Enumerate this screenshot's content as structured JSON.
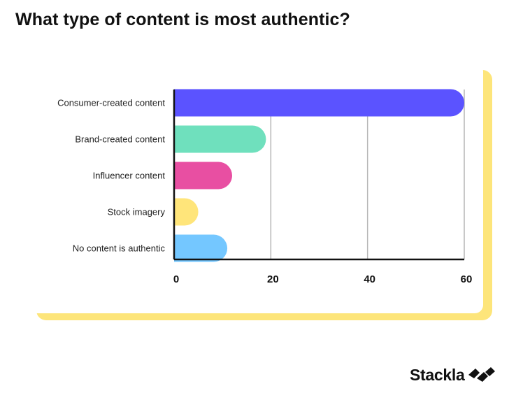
{
  "title": "What type of content is most authentic?",
  "logo": {
    "text": "Stackla",
    "icon": "stackla-mark-icon"
  },
  "colors": {
    "frame": "#fde57a",
    "gridline": "#b5b5b5",
    "axis": "#111111"
  },
  "chart_data": {
    "type": "bar",
    "orientation": "horizontal",
    "title": "What type of content is most authentic?",
    "categories": [
      "Consumer-created content",
      "Brand-created content",
      "Influencer content",
      "Stock imagery",
      "No content is authentic"
    ],
    "values": [
      60,
      19,
      12,
      5,
      11
    ],
    "colors": [
      "#5b53ff",
      "#6fe0bd",
      "#e84fa2",
      "#ffe57a",
      "#74c7ff"
    ],
    "xlim": [
      0,
      60
    ],
    "xticks": [
      "0",
      "20",
      "40",
      "60"
    ],
    "xlabel": "",
    "ylabel": "",
    "grid": true,
    "legend": "none"
  }
}
